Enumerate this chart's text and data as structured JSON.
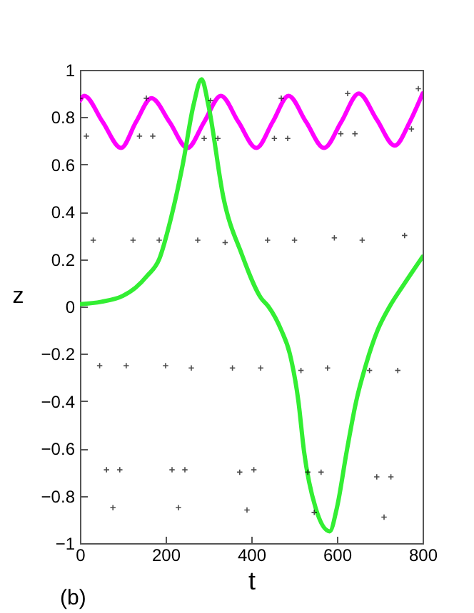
{
  "chart_data": {
    "type": "line",
    "xlabel": "t",
    "ylabel": "z",
    "annotations": [
      "(b)"
    ],
    "xlim": [
      0,
      800
    ],
    "ylim": [
      -1,
      1
    ],
    "xticks": [
      0,
      200,
      400,
      600,
      800
    ],
    "yticks": [
      -1,
      -0.8,
      -0.6,
      -0.4,
      -0.2,
      0,
      0.2,
      0.4,
      0.6,
      0.8,
      1
    ],
    "grid": false,
    "series": [
      {
        "type": "scatter",
        "marker": "cross",
        "color": "#000000",
        "x": [
          0,
          15,
          31,
          46,
          62,
          77,
          93,
          108,
          124,
          139,
          155,
          170,
          185,
          200,
          215,
          230,
          245,
          260,
          275,
          290,
          305,
          322,
          339,
          356,
          373,
          390,
          406,
          422,
          438,
          454,
          470,
          485,
          501,
          516,
          532,
          547,
          563,
          578,
          594,
          609,
          625,
          642,
          659,
          676,
          693,
          710,
          726,
          742,
          758,
          774,
          790
        ],
        "values": [
          0.88,
          0.72,
          0.28,
          -0.25,
          -0.69,
          -0.85,
          -0.69,
          -0.25,
          0.28,
          0.72,
          0.88,
          0.72,
          0.28,
          -0.25,
          -0.69,
          -0.85,
          -0.69,
          -0.26,
          0.28,
          0.71,
          0.87,
          0.71,
          0.27,
          -0.26,
          -0.7,
          -0.86,
          -0.69,
          -0.26,
          0.28,
          0.71,
          0.88,
          0.71,
          0.28,
          -0.27,
          -0.7,
          -0.87,
          -0.7,
          -0.26,
          0.29,
          0.73,
          0.9,
          0.73,
          0.28,
          -0.27,
          -0.72,
          -0.89,
          -0.72,
          -0.27,
          0.3,
          0.75,
          0.92
        ]
      },
      {
        "marker": "none",
        "color": "#ff00ff",
        "x": [
          0,
          10,
          53,
          96,
          131,
          167,
          209,
          251,
          290,
          329,
          370,
          412,
          450,
          487,
          528,
          570,
          610,
          651,
          693,
          735,
          770,
          800
        ],
        "values": [
          0.87,
          0.89,
          0.78,
          0.67,
          0.78,
          0.88,
          0.78,
          0.67,
          0.78,
          0.89,
          0.78,
          0.67,
          0.78,
          0.89,
          0.78,
          0.67,
          0.78,
          0.9,
          0.79,
          0.68,
          0.78,
          0.9
        ]
      },
      {
        "marker": "none",
        "color": "#33ee33",
        "x": [
          0,
          50,
          100,
          130,
          157,
          185,
          212,
          240,
          265,
          284,
          300,
          335,
          378,
          423,
          440,
          470,
          490,
          510,
          523,
          550,
          583,
          600,
          623,
          645,
          667,
          695,
          723,
          757,
          800
        ],
        "values": [
          0.01,
          0.02,
          0.045,
          0.08,
          0.13,
          0.2,
          0.37,
          0.6,
          0.85,
          0.96,
          0.85,
          0.46,
          0.22,
          0.035,
          0,
          -0.1,
          -0.2,
          -0.4,
          -0.61,
          -0.85,
          -0.95,
          -0.85,
          -0.61,
          -0.4,
          -0.25,
          -0.1,
          0,
          0.095,
          0.21
        ]
      }
    ]
  }
}
